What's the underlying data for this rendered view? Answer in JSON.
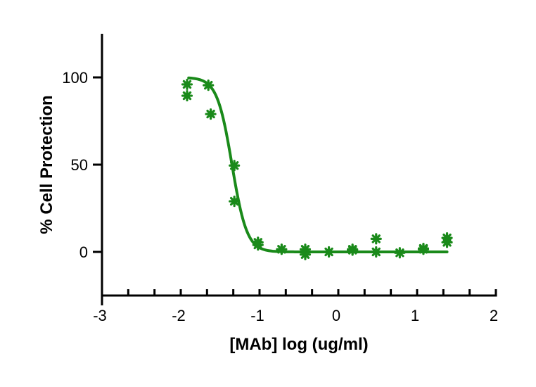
{
  "chart_data": {
    "type": "scatter",
    "title": "",
    "xlabel": "[MAb] log (ug/ml)",
    "ylabel": "% Cell Protection",
    "xlim": [
      -3,
      2
    ],
    "ylim": [
      -25,
      125
    ],
    "x_ticks": [
      "-3",
      "-2",
      "-1",
      "0",
      "1",
      "2"
    ],
    "y_ticks": [
      "0",
      "50",
      "100"
    ],
    "x_minor_step": 0.3333,
    "color": "#1a8a1a",
    "grid": false,
    "legend": "none",
    "series": [
      {
        "x": [
          -1.92,
          -1.92,
          -1.65,
          -1.62,
          -1.32,
          -1.32,
          -1.02,
          -1.02,
          -0.72,
          -0.42,
          -0.42,
          -0.12,
          0.18,
          0.18,
          0.48,
          0.48,
          0.78,
          1.08,
          1.08,
          1.38,
          1.38
        ],
        "y": [
          96,
          89.5,
          95.5,
          79,
          49.5,
          29,
          5.5,
          4,
          1.5,
          1.5,
          -1.5,
          0,
          1.5,
          1,
          7.5,
          0,
          -0.5,
          2,
          1.5,
          8,
          5.5
        ]
      }
    ],
    "fit": {
      "model": "4PL",
      "top": 100,
      "bottom": 0,
      "logIC50": -1.35,
      "hill": -4.6,
      "x_range": [
        -1.9,
        1.38
      ]
    }
  }
}
